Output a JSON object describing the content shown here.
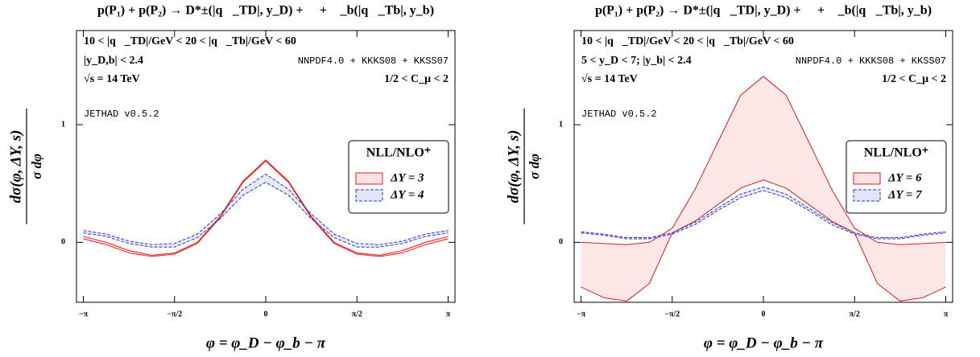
{
  "chart_data": [
    {
      "type": "band-line",
      "title": "p(P₁) + p(P₂) → D*±(|q⃗_TD|, y_D) + 𝒳 + ℋ_b(|q⃗_Tb|, y_b)",
      "annotations": [
        "10 < |q⃗_TD|/GeV < 20 < |q⃗_Tb|/GeV < 60",
        "|y_D,b| < 2.4",
        "√s = 14 TeV",
        "NNPDF4.0 + KKKS08 + KKSS07",
        "1/2 < C_μ < 2",
        "JETHAD v0.5.2"
      ],
      "xlabel": "φ = φ_D − φ_b − π",
      "ylabel": {
        "numerator": "dσ(φ, ΔY, s)",
        "denominator": "σ dφ"
      },
      "legend_title": "NLL/NLO⁺",
      "xlim": [
        -3.26,
        3.26
      ],
      "ylim": [
        -0.51,
        1.8
      ],
      "xticks": [
        {
          "value": -3.1416,
          "label": "−π"
        },
        {
          "value": -1.5708,
          "label": "−π/2"
        },
        0,
        {
          "value": 1.5708,
          "label": "π/2"
        },
        {
          "value": 3.1416,
          "label": "π"
        }
      ],
      "yticks": [
        0,
        1
      ],
      "x": [
        -3.1416,
        -2.7489,
        -2.3562,
        -1.9635,
        -1.5708,
        -1.1781,
        -0.7854,
        -0.3927,
        0,
        0.3927,
        0.7854,
        1.1781,
        1.5708,
        1.9635,
        2.3562,
        2.7489,
        3.1416
      ],
      "series": [
        {
          "name": "ΔY = 3",
          "color": "#e8191c",
          "fill": "#fde3e3",
          "dash": false,
          "lower": [
            0.03,
            -0.02,
            -0.09,
            -0.12,
            -0.1,
            -0.01,
            0.21,
            0.51,
            0.69,
            0.51,
            0.21,
            -0.01,
            -0.1,
            -0.12,
            -0.09,
            -0.02,
            0.03
          ],
          "upper": [
            0.05,
            0.0,
            -0.07,
            -0.11,
            -0.09,
            0.0,
            0.22,
            0.52,
            0.7,
            0.52,
            0.22,
            0.0,
            -0.09,
            -0.11,
            -0.07,
            0.0,
            0.05
          ]
        },
        {
          "name": "ΔY = 4",
          "color": "#2a35d6",
          "fill": "#e3e6fb",
          "dash": true,
          "lower": [
            0.08,
            0.05,
            -0.01,
            -0.04,
            -0.04,
            0.04,
            0.2,
            0.4,
            0.51,
            0.4,
            0.2,
            0.04,
            -0.04,
            -0.04,
            -0.01,
            0.05,
            0.08
          ],
          "upper": [
            0.1,
            0.07,
            0.01,
            -0.02,
            -0.01,
            0.07,
            0.24,
            0.45,
            0.58,
            0.45,
            0.24,
            0.07,
            -0.01,
            -0.02,
            0.01,
            0.07,
            0.1
          ]
        }
      ]
    },
    {
      "type": "band-line",
      "title": "p(P₁) + p(P₂) → D*±(|q⃗_TD|, y_D) + 𝒳 + ℋ_b(|q⃗_Tb|, y_b)",
      "annotations": [
        "10 < |q⃗_TD|/GeV < 20 < |q⃗_Tb|/GeV < 60",
        "5 < y_D < 7;  |y_b| < 2.4",
        "√s = 14 TeV",
        "NNPDF4.0 + KKKS08 + KKSS07",
        "1/2 < C_μ < 2",
        "JETHAD v0.5.2"
      ],
      "xlabel": "φ = φ_D − φ_b − π",
      "ylabel": {
        "numerator": "dσ(φ, ΔY, s)",
        "denominator": "σ dφ"
      },
      "legend_title": "NLL/NLO⁺",
      "xlim": [
        -3.26,
        3.26
      ],
      "ylim": [
        -0.51,
        1.8
      ],
      "xticks": [
        {
          "value": -3.1416,
          "label": "−π"
        },
        {
          "value": -1.5708,
          "label": "−π/2"
        },
        0,
        {
          "value": 1.5708,
          "label": "π/2"
        },
        {
          "value": 3.1416,
          "label": "π"
        }
      ],
      "yticks": [
        0,
        1
      ],
      "x": [
        -3.1416,
        -2.7489,
        -2.3562,
        -1.9635,
        -1.5708,
        -1.1781,
        -0.7854,
        -0.3927,
        0,
        0.3927,
        0.7854,
        1.1781,
        1.5708,
        1.9635,
        2.3562,
        2.7489,
        3.1416
      ],
      "series": [
        {
          "name": "ΔY = 6",
          "color": "#e8191c",
          "fill": "#fde3e3",
          "dash": false,
          "lower": [
            -0.38,
            -0.47,
            -0.5,
            -0.35,
            0.08,
            0.18,
            0.32,
            0.46,
            0.53,
            0.46,
            0.32,
            0.18,
            0.08,
            -0.35,
            -0.5,
            -0.47,
            -0.38
          ],
          "upper": [
            0.0,
            -0.01,
            -0.02,
            0.0,
            0.12,
            0.45,
            0.85,
            1.25,
            1.41,
            1.25,
            0.85,
            0.45,
            0.12,
            0.0,
            -0.02,
            -0.01,
            0.0
          ]
        },
        {
          "name": "ΔY = 7",
          "color": "#2a35d6",
          "fill": "#e3e6fb",
          "dash": true,
          "lower": [
            0.08,
            0.06,
            0.03,
            0.03,
            0.07,
            0.15,
            0.27,
            0.38,
            0.44,
            0.38,
            0.27,
            0.15,
            0.07,
            0.03,
            0.03,
            0.06,
            0.08
          ],
          "upper": [
            0.09,
            0.07,
            0.04,
            0.04,
            0.08,
            0.17,
            0.29,
            0.41,
            0.47,
            0.41,
            0.29,
            0.17,
            0.08,
            0.04,
            0.04,
            0.07,
            0.09
          ]
        }
      ]
    }
  ]
}
